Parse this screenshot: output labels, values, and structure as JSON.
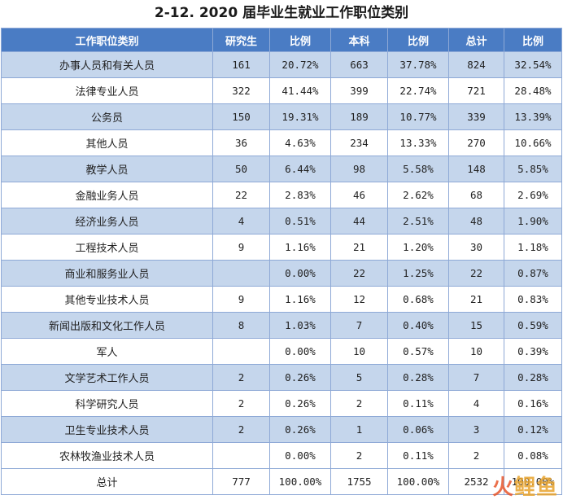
{
  "title": "2-12. 2020 届毕业生就业工作职位类别",
  "headers": [
    "工作职位类别",
    "研究生",
    "比例",
    "本科",
    "比例",
    "总计",
    "比例"
  ],
  "rows": [
    {
      "cat": "办事人员和有关人员",
      "grad": "161",
      "grad_pct": "20.72%",
      "ug": "663",
      "ug_pct": "37.78%",
      "total": "824",
      "total_pct": "32.54%"
    },
    {
      "cat": "法律专业人员",
      "grad": "322",
      "grad_pct": "41.44%",
      "ug": "399",
      "ug_pct": "22.74%",
      "total": "721",
      "total_pct": "28.48%"
    },
    {
      "cat": "公务员",
      "grad": "150",
      "grad_pct": "19.31%",
      "ug": "189",
      "ug_pct": "10.77%",
      "total": "339",
      "total_pct": "13.39%"
    },
    {
      "cat": "其他人员",
      "grad": "36",
      "grad_pct": "4.63%",
      "ug": "234",
      "ug_pct": "13.33%",
      "total": "270",
      "total_pct": "10.66%"
    },
    {
      "cat": "教学人员",
      "grad": "50",
      "grad_pct": "6.44%",
      "ug": "98",
      "ug_pct": "5.58%",
      "total": "148",
      "total_pct": "5.85%"
    },
    {
      "cat": "金融业务人员",
      "grad": "22",
      "grad_pct": "2.83%",
      "ug": "46",
      "ug_pct": "2.62%",
      "total": "68",
      "total_pct": "2.69%"
    },
    {
      "cat": "经济业务人员",
      "grad": "4",
      "grad_pct": "0.51%",
      "ug": "44",
      "ug_pct": "2.51%",
      "total": "48",
      "total_pct": "1.90%"
    },
    {
      "cat": "工程技术人员",
      "grad": "9",
      "grad_pct": "1.16%",
      "ug": "21",
      "ug_pct": "1.20%",
      "total": "30",
      "total_pct": "1.18%"
    },
    {
      "cat": "商业和服务业人员",
      "grad": "",
      "grad_pct": "0.00%",
      "ug": "22",
      "ug_pct": "1.25%",
      "total": "22",
      "total_pct": "0.87%"
    },
    {
      "cat": "其他专业技术人员",
      "grad": "9",
      "grad_pct": "1.16%",
      "ug": "12",
      "ug_pct": "0.68%",
      "total": "21",
      "total_pct": "0.83%"
    },
    {
      "cat": "新闻出版和文化工作人员",
      "grad": "8",
      "grad_pct": "1.03%",
      "ug": "7",
      "ug_pct": "0.40%",
      "total": "15",
      "total_pct": "0.59%"
    },
    {
      "cat": "军人",
      "grad": "",
      "grad_pct": "0.00%",
      "ug": "10",
      "ug_pct": "0.57%",
      "total": "10",
      "total_pct": "0.39%"
    },
    {
      "cat": "文学艺术工作人员",
      "grad": "2",
      "grad_pct": "0.26%",
      "ug": "5",
      "ug_pct": "0.28%",
      "total": "7",
      "total_pct": "0.28%"
    },
    {
      "cat": "科学研究人员",
      "grad": "2",
      "grad_pct": "0.26%",
      "ug": "2",
      "ug_pct": "0.11%",
      "total": "4",
      "total_pct": "0.16%"
    },
    {
      "cat": "卫生专业技术人员",
      "grad": "2",
      "grad_pct": "0.26%",
      "ug": "1",
      "ug_pct": "0.06%",
      "total": "3",
      "total_pct": "0.12%"
    },
    {
      "cat": "农林牧渔业技术人员",
      "grad": "",
      "grad_pct": "0.00%",
      "ug": "2",
      "ug_pct": "0.11%",
      "total": "2",
      "total_pct": "0.08%"
    }
  ],
  "total_row": {
    "cat": "总计",
    "grad": "777",
    "grad_pct": "100.00%",
    "ug": "1755",
    "ug_pct": "100.00%",
    "total": "2532",
    "total_pct": "100.00%"
  },
  "watermark": {
    "part1": "火",
    "part2": "鲤鱼"
  }
}
